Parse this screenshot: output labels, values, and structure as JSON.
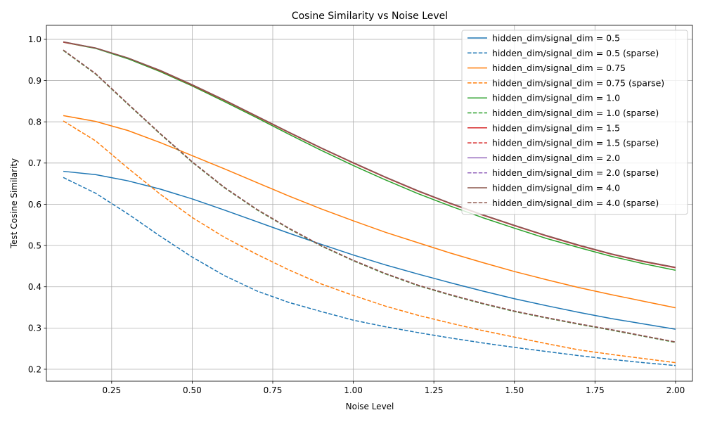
{
  "chart_data": {
    "type": "line",
    "title": "Cosine Similarity vs Noise Level",
    "xlabel": "Noise Level",
    "ylabel": "Test Cosine Similarity",
    "xlim": [
      0.0475,
      2.0525
    ],
    "ylim": [
      0.171,
      1.034
    ],
    "xticks": [
      0.25,
      0.5,
      0.75,
      1.0,
      1.25,
      1.5,
      1.75,
      2.0
    ],
    "xtick_labels": [
      "0.25",
      "0.50",
      "0.75",
      "1.00",
      "1.25",
      "1.50",
      "1.75",
      "2.00"
    ],
    "yticks": [
      0.2,
      0.3,
      0.4,
      0.5,
      0.6,
      0.7,
      0.8,
      0.9,
      1.0
    ],
    "ytick_labels": [
      "0.2",
      "0.3",
      "0.4",
      "0.5",
      "0.6",
      "0.7",
      "0.8",
      "0.9",
      "1.0"
    ],
    "grid": true,
    "legend_position": "top-right",
    "x": [
      0.1,
      0.2,
      0.3,
      0.4,
      0.5,
      0.6,
      0.7,
      0.8,
      0.9,
      1.0,
      1.1,
      1.2,
      1.3,
      1.4,
      1.5,
      1.6,
      1.7,
      1.8,
      1.9,
      2.0
    ],
    "series": [
      {
        "name": "hidden_dim/signal_dim = 0.5",
        "color": "#1f77b4",
        "style": "solid",
        "values": [
          0.68,
          0.672,
          0.657,
          0.637,
          0.613,
          0.586,
          0.558,
          0.53,
          0.503,
          0.477,
          0.453,
          0.431,
          0.41,
          0.39,
          0.371,
          0.354,
          0.338,
          0.323,
          0.31,
          0.297
        ]
      },
      {
        "name": "hidden_dim/signal_dim = 0.5 (sparse)",
        "color": "#1f77b4",
        "style": "dashed",
        "values": [
          0.665,
          0.627,
          0.577,
          0.523,
          0.472,
          0.427,
          0.39,
          0.362,
          0.34,
          0.319,
          0.303,
          0.289,
          0.276,
          0.264,
          0.253,
          0.243,
          0.233,
          0.224,
          0.216,
          0.209
        ]
      },
      {
        "name": "hidden_dim/signal_dim = 0.75",
        "color": "#ff7f0e",
        "style": "solid",
        "values": [
          0.815,
          0.801,
          0.779,
          0.75,
          0.718,
          0.686,
          0.653,
          0.62,
          0.589,
          0.56,
          0.532,
          0.507,
          0.482,
          0.459,
          0.437,
          0.417,
          0.398,
          0.381,
          0.365,
          0.349
        ]
      },
      {
        "name": "hidden_dim/signal_dim = 0.75 (sparse)",
        "color": "#ff7f0e",
        "style": "dashed",
        "values": [
          0.802,
          0.754,
          0.688,
          0.625,
          0.568,
          0.52,
          0.479,
          0.441,
          0.407,
          0.379,
          0.353,
          0.331,
          0.312,
          0.294,
          0.278,
          0.262,
          0.247,
          0.236,
          0.226,
          0.216
        ]
      },
      {
        "name": "hidden_dim/signal_dim = 1.0",
        "color": "#2ca02c",
        "style": "solid",
        "values": [
          0.993,
          0.978,
          0.953,
          0.922,
          0.887,
          0.849,
          0.81,
          0.77,
          0.731,
          0.694,
          0.659,
          0.626,
          0.596,
          0.568,
          0.542,
          0.517,
          0.495,
          0.474,
          0.456,
          0.44
        ]
      },
      {
        "name": "hidden_dim/signal_dim = 1.0 (sparse)",
        "color": "#2ca02c",
        "style": "dashed",
        "values": [
          0.973,
          0.916,
          0.843,
          0.771,
          0.702,
          0.64,
          0.587,
          0.541,
          0.499,
          0.463,
          0.431,
          0.403,
          0.38,
          0.359,
          0.34,
          0.324,
          0.309,
          0.295,
          0.28,
          0.265
        ]
      },
      {
        "name": "hidden_dim/signal_dim = 1.5",
        "color": "#d62728",
        "style": "solid",
        "values": [
          0.993,
          0.979,
          0.955,
          0.924,
          0.889,
          0.852,
          0.813,
          0.774,
          0.736,
          0.7,
          0.665,
          0.632,
          0.602,
          0.574,
          0.548,
          0.523,
          0.5,
          0.479,
          0.461,
          0.446
        ]
      },
      {
        "name": "hidden_dim/signal_dim = 1.5 (sparse)",
        "color": "#d62728",
        "style": "dashed",
        "values": [
          0.974,
          0.917,
          0.844,
          0.772,
          0.703,
          0.641,
          0.588,
          0.542,
          0.5,
          0.464,
          0.432,
          0.404,
          0.381,
          0.36,
          0.341,
          0.325,
          0.31,
          0.296,
          0.281,
          0.266
        ]
      },
      {
        "name": "hidden_dim/signal_dim = 2.0",
        "color": "#9467bd",
        "style": "solid",
        "values": [
          0.994,
          0.979,
          0.955,
          0.925,
          0.89,
          0.853,
          0.814,
          0.775,
          0.737,
          0.701,
          0.666,
          0.633,
          0.603,
          0.575,
          0.549,
          0.524,
          0.501,
          0.48,
          0.462,
          0.447
        ]
      },
      {
        "name": "hidden_dim/signal_dim = 2.0 (sparse)",
        "color": "#9467bd",
        "style": "dashed",
        "values": [
          0.974,
          0.917,
          0.844,
          0.772,
          0.703,
          0.641,
          0.588,
          0.542,
          0.5,
          0.464,
          0.432,
          0.404,
          0.381,
          0.36,
          0.341,
          0.325,
          0.31,
          0.296,
          0.281,
          0.266
        ]
      },
      {
        "name": "hidden_dim/signal_dim = 4.0",
        "color": "#8c564b",
        "style": "solid",
        "values": [
          0.994,
          0.979,
          0.955,
          0.925,
          0.89,
          0.853,
          0.814,
          0.775,
          0.737,
          0.701,
          0.666,
          0.633,
          0.603,
          0.575,
          0.549,
          0.524,
          0.501,
          0.48,
          0.462,
          0.447
        ]
      },
      {
        "name": "hidden_dim/signal_dim = 4.0 (sparse)",
        "color": "#8c564b",
        "style": "dashed",
        "values": [
          0.974,
          0.917,
          0.844,
          0.772,
          0.703,
          0.641,
          0.588,
          0.542,
          0.5,
          0.464,
          0.432,
          0.404,
          0.381,
          0.36,
          0.341,
          0.325,
          0.31,
          0.296,
          0.281,
          0.266
        ]
      }
    ]
  }
}
